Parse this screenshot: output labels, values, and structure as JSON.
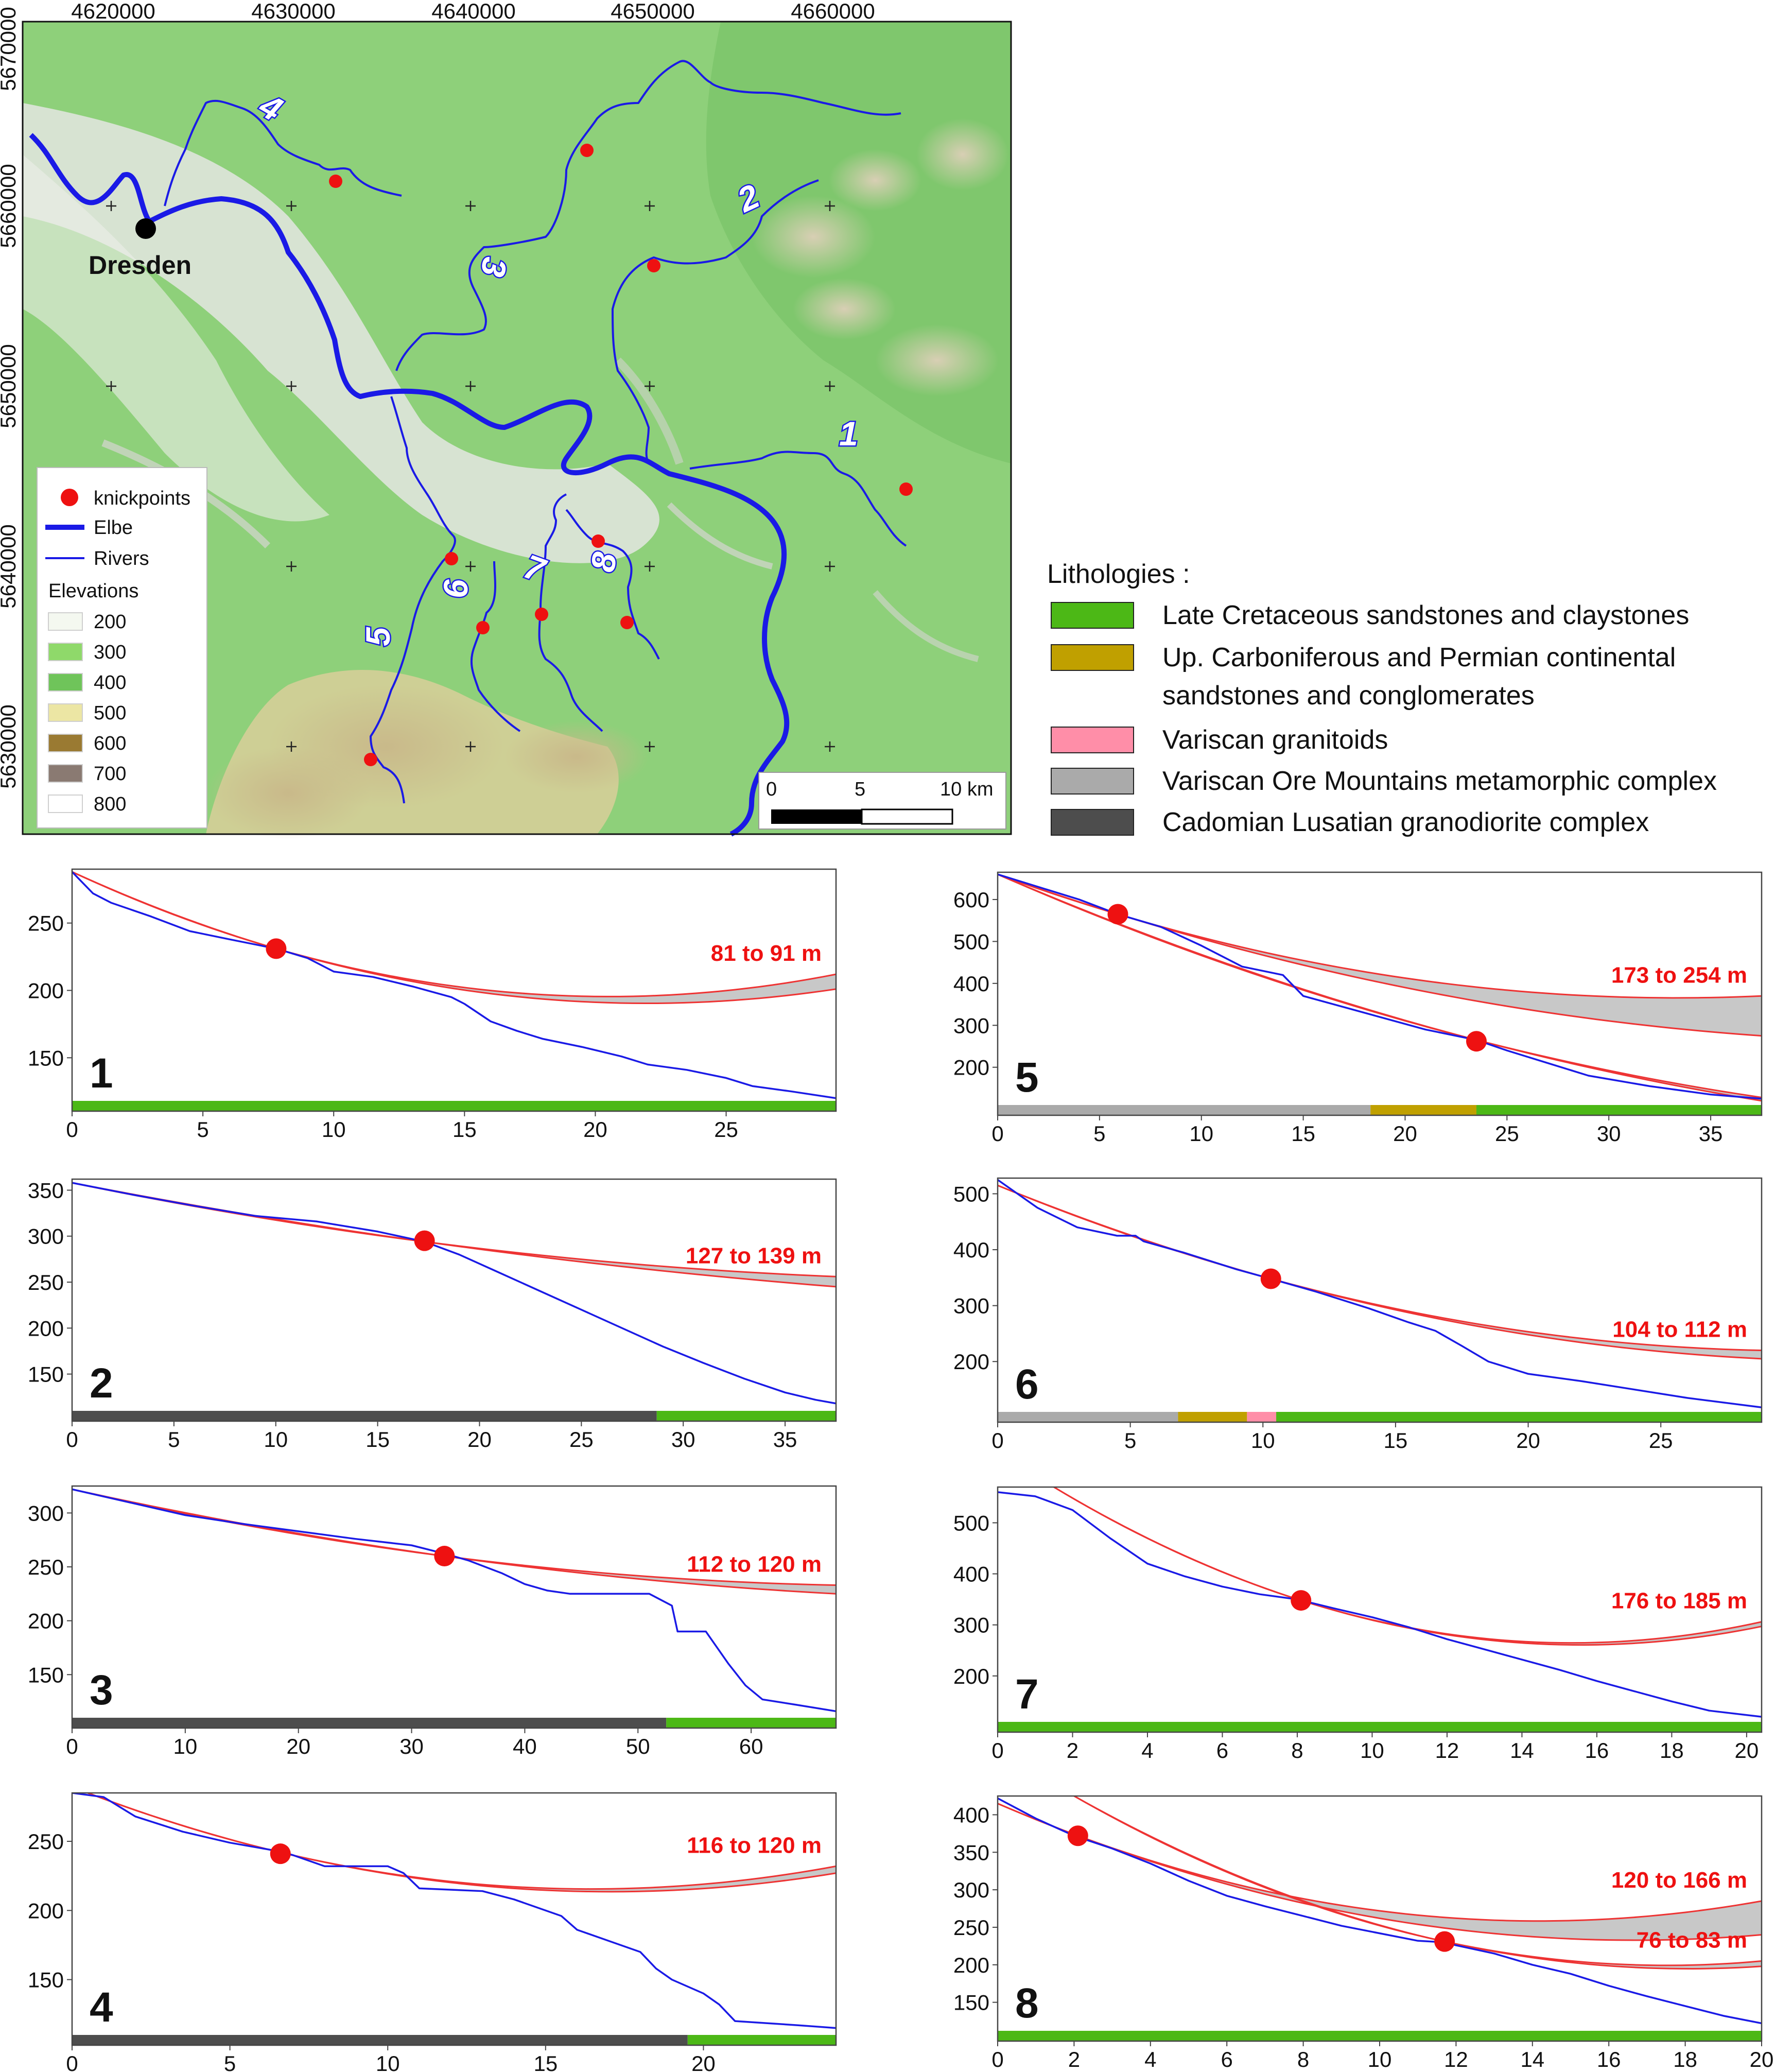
{
  "map": {
    "x_ticks": [
      "4620000",
      "4630000",
      "4640000",
      "4650000",
      "4660000"
    ],
    "y_ticks": [
      "5670000",
      "5660000",
      "5650000",
      "5640000",
      "5630000"
    ],
    "city": "Dresden",
    "river_labels": [
      "1",
      "2",
      "3",
      "4",
      "5",
      "6",
      "7",
      "8"
    ],
    "legend": {
      "knickpoints": "knickpoints",
      "elbe": "Elbe",
      "rivers": "Rivers",
      "elevations_title": "Elevations",
      "elevations": [
        {
          "label": "200",
          "color": "#f4f8f0"
        },
        {
          "label": "300",
          "color": "#8fd96a"
        },
        {
          "label": "400",
          "color": "#6fc45a"
        },
        {
          "label": "500",
          "color": "#ece6a4"
        },
        {
          "label": "600",
          "color": "#9a7a32"
        },
        {
          "label": "700",
          "color": "#8a7a72"
        },
        {
          "label": "800",
          "color": "#ffffff"
        }
      ]
    },
    "scalebar": {
      "labels": [
        "0",
        "5",
        "10 km"
      ]
    }
  },
  "lithologies": {
    "title": "Lithologies :",
    "items": [
      {
        "label_lines": [
          "Late Cretaceous sandstones and claystones"
        ],
        "color": "#4cb816"
      },
      {
        "label_lines": [
          "Up. Carboniferous and Permian continental",
          "sandstones and conglomerates"
        ],
        "color": "#c0a000"
      },
      {
        "label_lines": [
          "Variscan granitoids"
        ],
        "color": "#ff8ea8"
      },
      {
        "label_lines": [
          "Variscan Ore Mountains metamorphic complex"
        ],
        "color": "#aaaaaa"
      },
      {
        "label_lines": [
          "Cadomian Lusatian granodiorite complex"
        ],
        "color": "#4d4d4d"
      }
    ]
  },
  "chart_data": [
    {
      "type": "line",
      "panel": "1",
      "xlim": [
        0,
        29.2
      ],
      "ylim": [
        118,
        290
      ],
      "xticks": [
        0,
        5,
        10,
        15,
        20,
        25
      ],
      "yticks": [
        150,
        200,
        250
      ],
      "profile": [
        [
          0,
          288
        ],
        [
          0.8,
          272
        ],
        [
          1.5,
          265
        ],
        [
          3,
          255
        ],
        [
          4.5,
          244
        ],
        [
          6,
          238
        ],
        [
          7.8,
          231
        ],
        [
          9,
          224
        ],
        [
          10,
          214
        ],
        [
          11.5,
          210
        ],
        [
          13,
          203
        ],
        [
          14.5,
          195
        ],
        [
          15,
          190
        ],
        [
          16,
          177
        ],
        [
          17,
          170
        ],
        [
          18,
          164
        ],
        [
          19.5,
          158
        ],
        [
          21,
          151
        ],
        [
          22,
          145
        ],
        [
          23.5,
          141
        ],
        [
          25,
          135
        ],
        [
          26,
          129
        ],
        [
          27.5,
          125
        ],
        [
          29.2,
          120
        ]
      ],
      "projections": [
        {
          "start": [
            0,
            288
          ],
          "knick": [
            7.8,
            231
          ],
          "end_low": 201,
          "end_high": 212,
          "label": "81 to 91 m"
        }
      ],
      "knickpoints": [
        [
          7.8,
          231
        ]
      ],
      "lithology": [
        {
          "from": 0,
          "to": 29.2,
          "color": "#4cb816"
        }
      ]
    },
    {
      "type": "line",
      "panel": "5",
      "xlim": [
        0,
        37.5
      ],
      "ylim": [
        110,
        665
      ],
      "xticks": [
        0,
        5,
        10,
        15,
        20,
        25,
        30,
        35
      ],
      "yticks": [
        200,
        300,
        400,
        500,
        600
      ],
      "profile": [
        [
          0,
          660
        ],
        [
          2,
          630
        ],
        [
          4,
          600
        ],
        [
          5.9,
          565
        ],
        [
          8,
          535
        ],
        [
          10,
          490
        ],
        [
          12,
          440
        ],
        [
          14,
          420
        ],
        [
          15,
          370
        ],
        [
          18,
          330
        ],
        [
          21,
          290
        ],
        [
          23.5,
          265
        ],
        [
          25,
          240
        ],
        [
          27,
          210
        ],
        [
          29,
          180
        ],
        [
          32,
          155
        ],
        [
          35,
          135
        ],
        [
          37.5,
          125
        ]
      ],
      "projections": [
        {
          "start": [
            0,
            660
          ],
          "knick": [
            5.9,
            565
          ],
          "end_low": 275,
          "end_high": 370,
          "label": "173 to 254 m"
        },
        {
          "start": [
            0,
            660
          ],
          "knick": [
            23.5,
            265
          ],
          "end_low": 120,
          "end_high": 128,
          "label": ""
        }
      ],
      "knickpoints": [
        [
          5.9,
          565
        ],
        [
          23.5,
          262
        ]
      ],
      "lithology": [
        {
          "from": 0,
          "to": 18.3,
          "color": "#aaaaaa"
        },
        {
          "from": 18.3,
          "to": 23.5,
          "color": "#c0a000"
        },
        {
          "from": 23.5,
          "to": 37.5,
          "color": "#4cb816"
        }
      ]
    },
    {
      "type": "line",
      "panel": "2",
      "xlim": [
        0,
        37.5
      ],
      "ylim": [
        110,
        362
      ],
      "xticks": [
        0,
        5,
        10,
        15,
        20,
        25,
        30,
        35
      ],
      "yticks": [
        150,
        200,
        250,
        300,
        350
      ],
      "profile": [
        [
          0,
          358
        ],
        [
          3,
          345
        ],
        [
          6,
          333
        ],
        [
          9,
          322
        ],
        [
          12,
          316
        ],
        [
          15,
          305
        ],
        [
          17.3,
          294
        ],
        [
          19,
          280
        ],
        [
          21,
          260
        ],
        [
          23,
          240
        ],
        [
          25,
          220
        ],
        [
          27,
          200
        ],
        [
          29,
          180
        ],
        [
          31,
          162
        ],
        [
          33,
          145
        ],
        [
          35,
          130
        ],
        [
          36.5,
          122
        ],
        [
          37.5,
          118
        ]
      ],
      "projections": [
        {
          "start": [
            0,
            358
          ],
          "knick": [
            17.3,
            294
          ],
          "end_low": 245,
          "end_high": 256,
          "label": "127 to 139 m"
        }
      ],
      "knickpoints": [
        [
          17.3,
          295
        ]
      ],
      "lithology": [
        {
          "from": 0,
          "to": 28.7,
          "color": "#4d4d4d"
        },
        {
          "from": 28.7,
          "to": 37.5,
          "color": "#4cb816"
        }
      ]
    },
    {
      "type": "line",
      "panel": "6",
      "xlim": [
        0,
        28.8
      ],
      "ylim": [
        110,
        528
      ],
      "xticks": [
        0,
        5,
        10,
        15,
        20,
        25
      ],
      "yticks": [
        200,
        300,
        400,
        500
      ],
      "profile": [
        [
          0,
          525
        ],
        [
          1.5,
          475
        ],
        [
          3,
          440
        ],
        [
          4.5,
          425
        ],
        [
          5.2,
          425
        ],
        [
          5.5,
          415
        ],
        [
          7,
          395
        ],
        [
          9,
          365
        ],
        [
          10.3,
          348
        ],
        [
          12,
          325
        ],
        [
          14,
          295
        ],
        [
          15.5,
          270
        ],
        [
          16.5,
          255
        ],
        [
          17.5,
          228
        ],
        [
          18.5,
          200
        ],
        [
          20,
          178
        ],
        [
          22,
          165
        ],
        [
          24,
          150
        ],
        [
          26,
          135
        ],
        [
          28.8,
          118
        ]
      ],
      "projections": [
        {
          "start": [
            0,
            515
          ],
          "knick": [
            10.3,
            348
          ],
          "end_low": 205,
          "end_high": 220,
          "label": "104 to 112 m"
        }
      ],
      "knickpoints": [
        [
          10.3,
          348
        ]
      ],
      "lithology": [
        {
          "from": 0,
          "to": 6.8,
          "color": "#aaaaaa"
        },
        {
          "from": 6.8,
          "to": 9.4,
          "color": "#c0a000"
        },
        {
          "from": 9.4,
          "to": 10.5,
          "color": "#ff8ea8"
        },
        {
          "from": 10.5,
          "to": 28.8,
          "color": "#4cb816"
        }
      ]
    },
    {
      "type": "line",
      "panel": "3",
      "xlim": [
        0,
        67.5
      ],
      "ylim": [
        110,
        325
      ],
      "xticks": [
        0,
        10,
        20,
        30,
        40,
        50,
        60
      ],
      "yticks": [
        150,
        200,
        250,
        300
      ],
      "profile": [
        [
          0,
          322
        ],
        [
          5,
          310
        ],
        [
          10,
          298
        ],
        [
          15,
          290
        ],
        [
          20,
          283
        ],
        [
          25,
          276
        ],
        [
          30,
          270
        ],
        [
          33,
          262
        ],
        [
          35,
          256
        ],
        [
          38,
          244
        ],
        [
          40,
          234
        ],
        [
          42,
          228
        ],
        [
          44,
          225
        ],
        [
          47,
          225
        ],
        [
          51,
          225
        ],
        [
          53,
          214
        ],
        [
          53.5,
          190
        ],
        [
          56,
          190
        ],
        [
          58,
          160
        ],
        [
          59.5,
          140
        ],
        [
          61,
          127
        ],
        [
          64,
          122
        ],
        [
          67.5,
          116
        ]
      ],
      "projections": [
        {
          "start": [
            0,
            322
          ],
          "knick": [
            32.9,
            260
          ],
          "end_low": 225,
          "end_high": 233,
          "label": "112 to 120 m"
        }
      ],
      "knickpoints": [
        [
          32.9,
          260
        ]
      ],
      "lithology": [
        {
          "from": 0,
          "to": 52.5,
          "color": "#4d4d4d"
        },
        {
          "from": 52.5,
          "to": 67.5,
          "color": "#4cb816"
        }
      ]
    },
    {
      "type": "line",
      "panel": "7",
      "xlim": [
        0,
        20.4
      ],
      "ylim": [
        110,
        570
      ],
      "xticks": [
        0,
        2,
        4,
        6,
        8,
        10,
        12,
        14,
        16,
        18,
        20
      ],
      "yticks": [
        200,
        300,
        400,
        500
      ],
      "profile": [
        [
          0,
          560
        ],
        [
          1,
          552
        ],
        [
          2,
          525
        ],
        [
          3,
          470
        ],
        [
          4,
          420
        ],
        [
          5,
          395
        ],
        [
          6,
          375
        ],
        [
          7,
          360
        ],
        [
          8,
          350
        ],
        [
          9,
          332
        ],
        [
          10,
          315
        ],
        [
          11,
          295
        ],
        [
          12,
          272
        ],
        [
          13,
          252
        ],
        [
          14,
          232
        ],
        [
          15,
          212
        ],
        [
          16,
          190
        ],
        [
          17,
          170
        ],
        [
          18,
          150
        ],
        [
          19,
          132
        ],
        [
          20.4,
          120
        ]
      ],
      "projections": [
        {
          "start": [
            1.5,
            570
          ],
          "knick": [
            8.1,
            348
          ],
          "end_low": 297,
          "end_high": 306,
          "label": "176 to 185 m"
        }
      ],
      "knickpoints": [
        [
          8.1,
          348
        ]
      ],
      "lithology": [
        {
          "from": 0,
          "to": 20.4,
          "color": "#4cb816"
        }
      ]
    },
    {
      "type": "line",
      "panel": "4",
      "xlim": [
        0,
        24.2
      ],
      "ylim": [
        110,
        285
      ],
      "xticks": [
        0,
        5,
        10,
        15,
        20
      ],
      "yticks": [
        150,
        200,
        250
      ],
      "profile": [
        [
          0,
          285
        ],
        [
          1,
          282
        ],
        [
          2,
          268
        ],
        [
          3.5,
          257
        ],
        [
          5,
          249
        ],
        [
          6.5,
          243
        ],
        [
          7,
          240
        ],
        [
          8,
          232
        ],
        [
          10,
          232
        ],
        [
          10.5,
          227
        ],
        [
          11,
          216
        ],
        [
          13,
          214
        ],
        [
          14,
          208
        ],
        [
          15.5,
          196
        ],
        [
          16,
          186
        ],
        [
          17,
          178
        ],
        [
          18,
          170
        ],
        [
          18.5,
          158
        ],
        [
          19,
          150
        ],
        [
          20,
          140
        ],
        [
          20.5,
          132
        ],
        [
          21,
          120
        ],
        [
          23,
          117
        ],
        [
          24.2,
          115
        ]
      ],
      "projections": [
        {
          "start": [
            0.5,
            285
          ],
          "knick": [
            6.6,
            242
          ],
          "end_low": 227,
          "end_high": 232,
          "label": "116 to 120 m"
        }
      ],
      "knickpoints": [
        [
          6.6,
          241
        ]
      ],
      "lithology": [
        {
          "from": 0,
          "to": 19.5,
          "color": "#4d4d4d"
        },
        {
          "from": 19.5,
          "to": 24.2,
          "color": "#4cb816"
        }
      ]
    },
    {
      "type": "line",
      "panel": "8",
      "xlim": [
        0,
        20
      ],
      "ylim": [
        112,
        425
      ],
      "xticks": [
        0,
        2,
        4,
        6,
        8,
        10,
        12,
        14,
        16,
        18,
        20
      ],
      "yticks": [
        150,
        200,
        250,
        300,
        350,
        400
      ],
      "profile": [
        [
          0,
          422
        ],
        [
          1,
          395
        ],
        [
          2,
          372
        ],
        [
          3,
          355
        ],
        [
          4,
          335
        ],
        [
          5,
          312
        ],
        [
          6,
          292
        ],
        [
          7,
          278
        ],
        [
          8,
          265
        ],
        [
          9,
          252
        ],
        [
          10,
          242
        ],
        [
          11,
          232
        ],
        [
          11.7,
          230
        ],
        [
          12,
          226
        ],
        [
          13,
          215
        ],
        [
          14,
          200
        ],
        [
          15,
          188
        ],
        [
          16,
          172
        ],
        [
          17,
          158
        ],
        [
          18,
          145
        ],
        [
          19,
          132
        ],
        [
          20,
          122
        ]
      ],
      "projections": [
        {
          "start": [
            0,
            415
          ],
          "knick": [
            2.1,
            372
          ],
          "end_low": 240,
          "end_high": 285,
          "label": "120 to 166 m"
        },
        {
          "start": [
            2.0,
            425
          ],
          "knick": [
            11.7,
            231
          ],
          "end_low": 198,
          "end_high": 205,
          "label": "76 to 83 m"
        }
      ],
      "knickpoints": [
        [
          2.1,
          372
        ],
        [
          11.7,
          231
        ]
      ],
      "lithology": [
        {
          "from": 0,
          "to": 20,
          "color": "#4cb816"
        }
      ]
    }
  ]
}
